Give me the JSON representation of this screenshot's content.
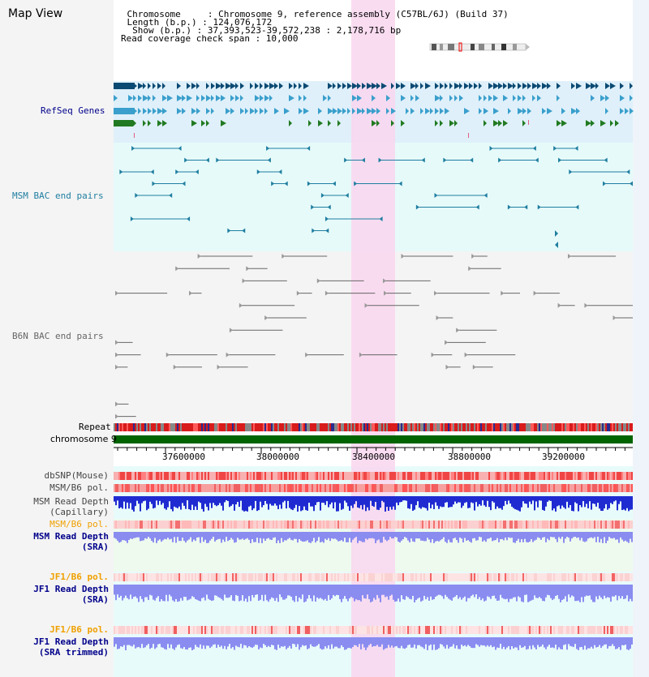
{
  "view": {
    "title": "Map View"
  },
  "info": {
    "chromosome": "    Chromosome     : Chromosome 9, reference assembly (C57BL/6J) (Build 37)",
    "length": "    Length (b.p.) : 124,076,172",
    "show": "     Show (b.p.) : 37,393,523-39,572,238 : 2,178,716 bp",
    "coverage": "Read coverage check span : 10,000"
  },
  "labels": {
    "refseq": "RefSeq Genes",
    "msm_bac": "MSM BAC end pairs",
    "b6n_bac": "B6N BAC end pairs",
    "repeat": "Repeat",
    "chromosome": "chromosome 9",
    "dbsnp": "dbSNP(Mouse)",
    "msm_b6_pol": "MSM/B6 pol.",
    "msm_depth_cap_1": "MSM Read Depth",
    "msm_depth_cap_2": "(Capillary)",
    "msm_b6_pol_2": "MSM/B6 pol.",
    "msm_depth_sra_1": "MSM Read Depth",
    "msm_depth_sra_2": "(SRA)",
    "jf1_b6_pol": "JF1/B6 pol.",
    "jf1_depth_sra_1": "JF1 Read Depth",
    "jf1_depth_sra_2": "(SRA)",
    "jf1_b6_pol_2": "JF1/B6 pol.",
    "jf1_depth_trim_1": "JF1 Read Depth",
    "jf1_depth_trim_2": "(SRA trimmed)"
  },
  "axis": {
    "ticks": [
      "37600000",
      "38000000",
      "38400000",
      "38800000",
      "39200000"
    ]
  },
  "colors": {
    "refseq_bg": "#dff0fa",
    "msm_bg": "#e6fafa",
    "b6n_bg": "#f4f4f4",
    "highlight": "#f9d6ef",
    "refseq_dark": "#0b4a73",
    "refseq_mid": "#3a9fcc",
    "refseq_green": "#217a21",
    "msm_feature": "#1f7ea0",
    "b6n_feature": "#666666",
    "chromosome_bar": "#006400",
    "depth_cap": "#1f2bd1",
    "depth_sra": "#8a8cf0",
    "label_blue": "#00008b",
    "label_orange": "#f0a000",
    "label_navy": "#003a6f"
  }
}
